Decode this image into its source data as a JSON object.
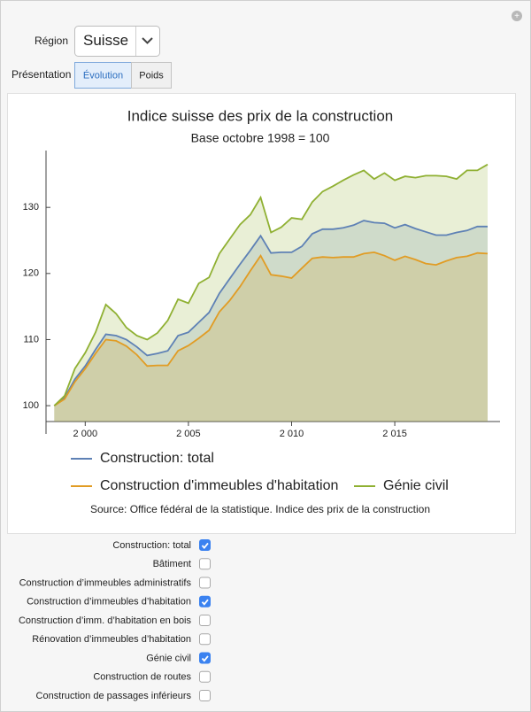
{
  "controls": {
    "region_label": "Région",
    "region": "Suisse",
    "presentation_label": "Présentation",
    "presentation_options": [
      {
        "label": "Évolution",
        "selected": true
      },
      {
        "label": "Poids",
        "selected": false
      }
    ],
    "series_options": [
      {
        "label": "Construction: total",
        "checked": true
      },
      {
        "label": "Bâtiment",
        "checked": false
      },
      {
        "label": "Construction d’immeubles administratifs",
        "checked": false
      },
      {
        "label": "Construction d’immeubles d’habitation",
        "checked": true
      },
      {
        "label": "Construction d’imm. d’habitation en bois",
        "checked": false
      },
      {
        "label": "Rénovation d’immeubles d’habitation",
        "checked": false
      },
      {
        "label": "Génie civil",
        "checked": true
      },
      {
        "label": "Construction de routes",
        "checked": false
      },
      {
        "label": "Construction de passages inférieurs",
        "checked": false
      }
    ]
  },
  "chart_data": {
    "type": "area",
    "title": "Indice suisse des prix de la construction",
    "subtitle": "Base octobre 1998 = 100",
    "caption": "Source: Office fédéral de la statistique. Indice des prix de la construction",
    "legend": "bottom",
    "x": [
      1998.5,
      1999,
      1999.5,
      2000,
      2000.5,
      2001,
      2001.5,
      2002,
      2002.5,
      2003,
      2003.5,
      2004,
      2004.5,
      2005,
      2005.5,
      2006,
      2006.5,
      2007,
      2007.5,
      2008,
      2008.5,
      2009,
      2009.5,
      2010,
      2010.5,
      2011,
      2011.5,
      2012,
      2012.5,
      2013,
      2013.5,
      2014,
      2014.5,
      2015,
      2015.5,
      2016,
      2016.5,
      2017,
      2017.5,
      2018,
      2018.5,
      2019,
      2019.5
    ],
    "xlim": [
      1998.1,
      2020.1
    ],
    "xticks": [
      {
        "value": 2000,
        "label": "2 000"
      },
      {
        "value": 2005,
        "label": "2 005"
      },
      {
        "value": 2010,
        "label": "2 010"
      },
      {
        "value": 2015,
        "label": "2 015"
      }
    ],
    "ylim": [
      97.6,
      138.6
    ],
    "yticks": [
      100,
      110,
      120,
      130
    ],
    "series": [
      {
        "name": "Construction: total",
        "color": "#5e81b5",
        "values": [
          100,
          101.2,
          104,
          106,
          108.5,
          110.8,
          110.6,
          110,
          108.9,
          107.6,
          107.9,
          108.3,
          110.6,
          111.1,
          112.6,
          114.1,
          117,
          119.2,
          121.4,
          123.5,
          125.7,
          123.1,
          123.2,
          123.2,
          124.1,
          126,
          126.7,
          126.7,
          126.9,
          127.3,
          128,
          127.7,
          127.6,
          126.9,
          127.4,
          126.8,
          126.3,
          125.8,
          125.8,
          126.2,
          126.5,
          127.1,
          127.1
        ]
      },
      {
        "name": "Construction d'immeubles d'habitation",
        "color": "#e19c24",
        "values": [
          100,
          101,
          103.6,
          105.6,
          107.9,
          110,
          109.8,
          109,
          107.7,
          106,
          106.1,
          106.1,
          108.3,
          109.1,
          110.2,
          111.4,
          114.2,
          115.9,
          118,
          120.4,
          122.7,
          119.8,
          119.6,
          119.3,
          120.8,
          122.3,
          122.5,
          122.4,
          122.5,
          122.5,
          123,
          123.2,
          122.7,
          122,
          122.6,
          122.1,
          121.5,
          121.3,
          121.9,
          122.4,
          122.6,
          123.1,
          123
        ]
      },
      {
        "name": "Génie civil",
        "color": "#8fb032",
        "values": [
          100,
          101.5,
          105.6,
          108,
          111.1,
          115.3,
          113.9,
          111.8,
          110.6,
          110,
          111,
          112.9,
          116.1,
          115.5,
          118.5,
          119.4,
          123,
          125.2,
          127.4,
          128.9,
          131.5,
          126.2,
          127,
          128.4,
          128.2,
          130.8,
          132.4,
          133.2,
          134.1,
          134.9,
          135.6,
          134.3,
          135.2,
          134.1,
          134.7,
          134.5,
          134.8,
          134.8,
          134.7,
          134.3,
          135.6,
          135.6,
          136.5
        ]
      }
    ]
  }
}
